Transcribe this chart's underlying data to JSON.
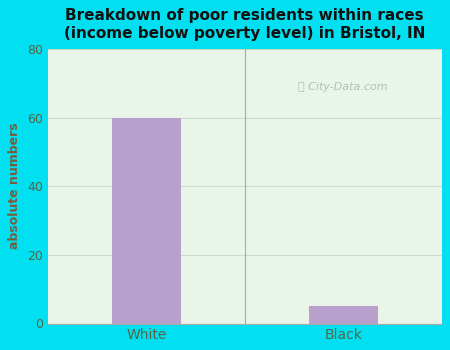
{
  "categories": [
    "White",
    "Black"
  ],
  "values": [
    60,
    5
  ],
  "bar_color": "#b8a0cc",
  "title_line1": "Breakdown of poor residents within races",
  "title_line2": "(income below poverty level) in Bristol, IN",
  "ylabel": "absolute numbers",
  "ylim": [
    0,
    80
  ],
  "yticks": [
    0,
    20,
    40,
    60,
    80
  ],
  "background_outer": "#00e0f0",
  "background_plot": "#e8f5e8",
  "grid_color": "#c8ddc8",
  "title_color": "#111111",
  "tick_label_color": "#556644",
  "ylabel_color": "#7a5c3a",
  "watermark_text": "City-Data.com",
  "watermark_color": "#aabbaa",
  "bar_width": 0.35,
  "divider_color": "#aaaaaa",
  "bottom_line_color": "#aaaaaa"
}
